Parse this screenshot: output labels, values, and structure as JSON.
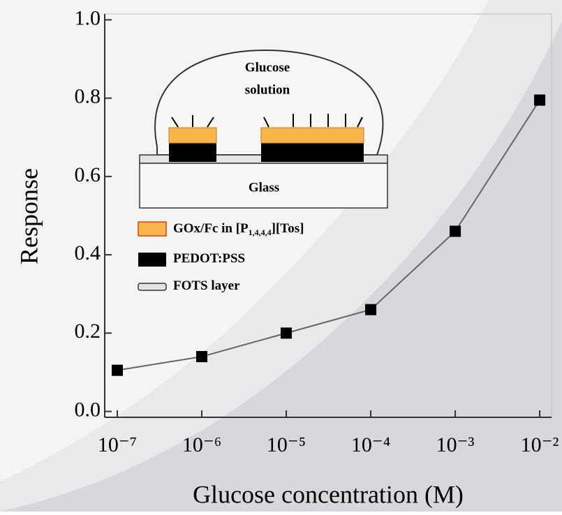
{
  "chart_data": {
    "type": "line",
    "x_label": "Glucose concentration (M)",
    "y_label": "Response",
    "x": [
      1e-07,
      1e-06,
      1e-05,
      0.0001,
      0.001,
      0.01
    ],
    "values": [
      0.105,
      0.14,
      0.2,
      0.26,
      0.46,
      0.795
    ],
    "color": "#000000",
    "line_color": "#666666",
    "x_log": true,
    "xlim": [
      7.1e-08,
      0.0138
    ],
    "xticks": [
      {
        "value": 1e-07,
        "label": "10⁻⁷"
      },
      {
        "value": 1e-06,
        "label": "10⁻⁶"
      },
      {
        "value": 1e-05,
        "label": "10⁻⁵"
      },
      {
        "value": 0.0001,
        "label": "10⁻⁴"
      },
      {
        "value": 0.001,
        "label": "10⁻³"
      },
      {
        "value": 0.01,
        "label": "10⁻²"
      }
    ],
    "ylim": [
      -0.015,
      1.015
    ],
    "yticks": [
      {
        "value": 0,
        "label": "0.0"
      },
      0.2,
      0.4,
      0.6,
      0.8,
      {
        "value": 1,
        "label": "1.0"
      }
    ],
    "inset": {
      "solution_line1": "Glucose",
      "solution_line2": "solution",
      "substrate": "Glass",
      "legend": [
        {
          "parts": [
            "GOx/Fc in [P",
            "1,4,4,4",
            "][Tos]"
          ]
        },
        {
          "parts": [
            "PEDOT:PSS"
          ]
        },
        {
          "parts": [
            "FOTS layer"
          ]
        }
      ]
    }
  }
}
